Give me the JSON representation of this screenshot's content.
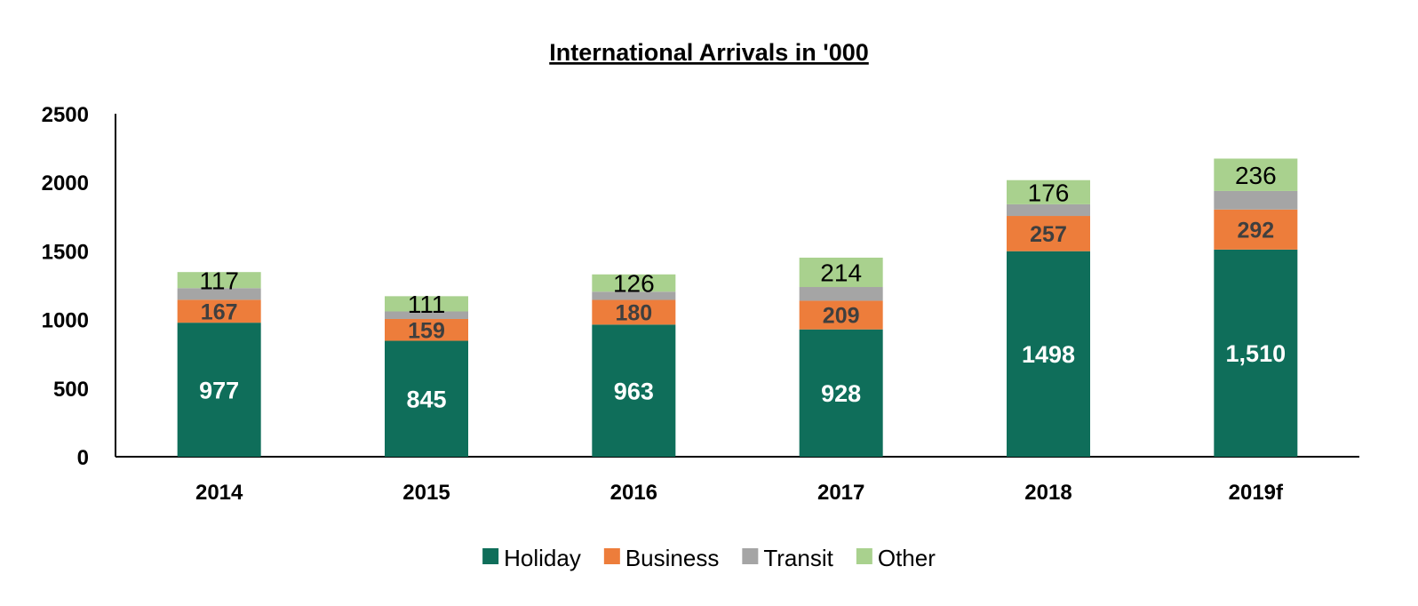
{
  "chart_data": {
    "type": "bar",
    "stacked": true,
    "title": "International Arrivals in '000",
    "categories": [
      "2014",
      "2015",
      "2016",
      "2017",
      "2018",
      "2019f"
    ],
    "series": [
      {
        "name": "Holiday",
        "color": "#0f6e5a",
        "values": [
          977,
          845,
          963,
          928,
          1498,
          1510
        ],
        "labels": [
          "977",
          "845",
          "963",
          "928",
          "1498",
          "1,510"
        ],
        "label_color": "#ffffff"
      },
      {
        "name": "Business",
        "color": "#ed7d3b",
        "values": [
          167,
          159,
          180,
          209,
          257,
          292
        ],
        "labels": [
          "167",
          "159",
          "180",
          "209",
          "257",
          "292"
        ],
        "label_color": "#3f3f3f"
      },
      {
        "name": "Transit",
        "color": "#a5a5a5",
        "values": [
          85,
          55,
          60,
          100,
          85,
          135
        ]
      },
      {
        "name": "Other",
        "color": "#a9d18e",
        "values": [
          117,
          111,
          126,
          214,
          176,
          236
        ],
        "labels": [
          "117",
          "111",
          "126",
          "214",
          "176",
          "236"
        ],
        "label_color": "#000000"
      }
    ],
    "ylim": [
      0,
      2500
    ],
    "yticks": [
      "0",
      "500",
      "1000",
      "1500",
      "2000",
      "2500"
    ],
    "xlabel": "",
    "ylabel": "",
    "grid": false,
    "legend_position": "bottom"
  }
}
